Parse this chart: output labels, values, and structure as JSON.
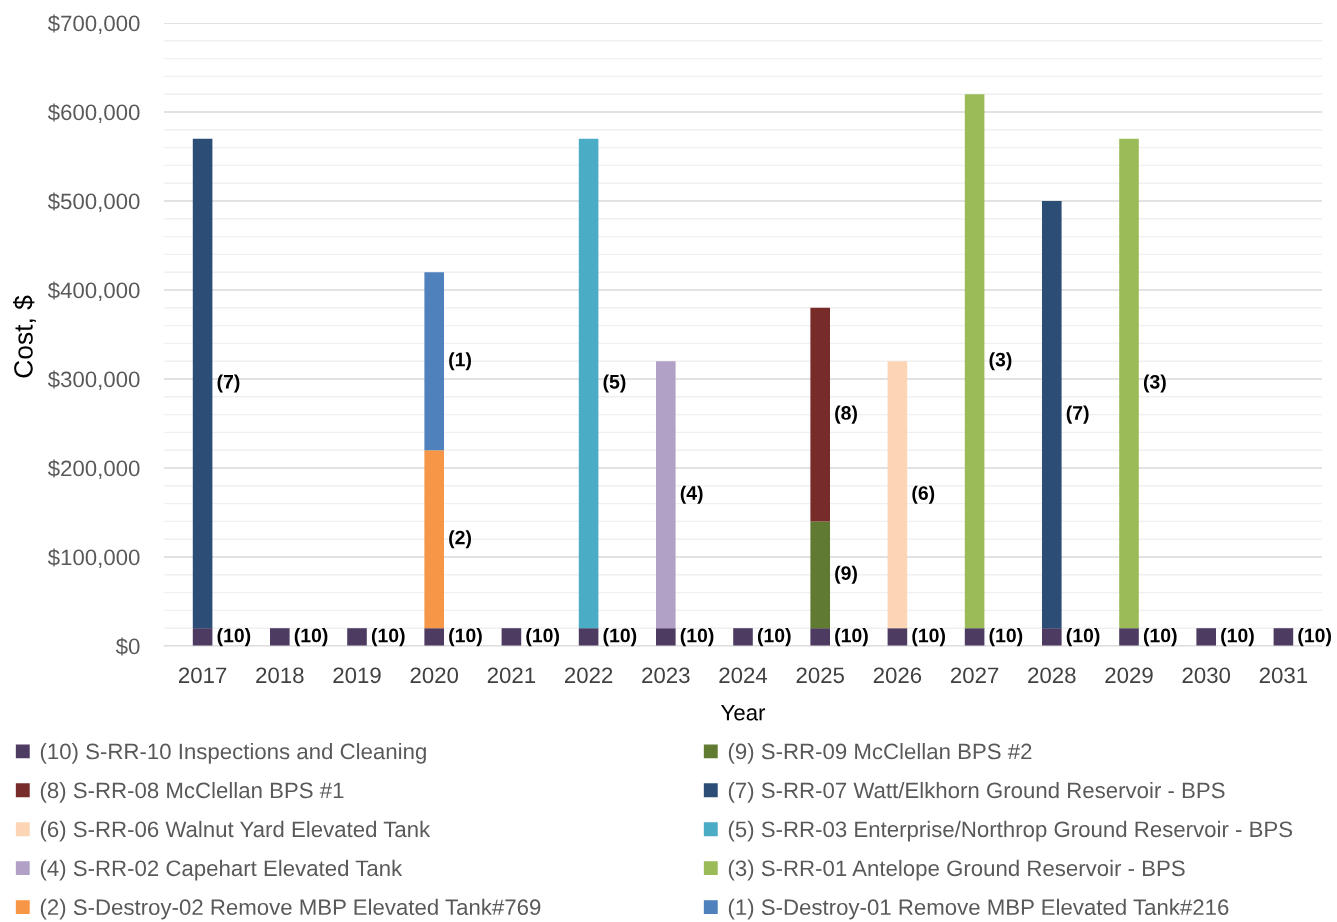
{
  "chart_data": {
    "type": "bar",
    "stacked": true,
    "xlabel": "Year",
    "ylabel": "Cost, $",
    "categories": [
      "2017",
      "2018",
      "2019",
      "2020",
      "2021",
      "2022",
      "2023",
      "2024",
      "2025",
      "2026",
      "2027",
      "2028",
      "2029",
      "2030",
      "2031"
    ],
    "ylim": [
      0,
      700000
    ],
    "yticks": [
      {
        "value": 0,
        "label": "$0"
      },
      {
        "value": 20000,
        "label": null
      },
      {
        "value": 40000,
        "label": null
      },
      {
        "value": 60000,
        "label": null
      },
      {
        "value": 80000,
        "label": null
      },
      {
        "value": 100000,
        "label": "$100,000"
      },
      {
        "value": 120000,
        "label": null
      },
      {
        "value": 140000,
        "label": null
      },
      {
        "value": 160000,
        "label": null
      },
      {
        "value": 180000,
        "label": null
      },
      {
        "value": 200000,
        "label": "$200,000"
      },
      {
        "value": 220000,
        "label": null
      },
      {
        "value": 240000,
        "label": null
      },
      {
        "value": 260000,
        "label": null
      },
      {
        "value": 280000,
        "label": null
      },
      {
        "value": 300000,
        "label": "$300,000"
      },
      {
        "value": 320000,
        "label": null
      },
      {
        "value": 340000,
        "label": null
      },
      {
        "value": 360000,
        "label": null
      },
      {
        "value": 380000,
        "label": null
      },
      {
        "value": 400000,
        "label": "$400,000"
      },
      {
        "value": 420000,
        "label": null
      },
      {
        "value": 440000,
        "label": null
      },
      {
        "value": 460000,
        "label": null
      },
      {
        "value": 480000,
        "label": null
      },
      {
        "value": 500000,
        "label": "$500,000"
      },
      {
        "value": 520000,
        "label": null
      },
      {
        "value": 540000,
        "label": null
      },
      {
        "value": 560000,
        "label": null
      },
      {
        "value": 580000,
        "label": null
      },
      {
        "value": 600000,
        "label": "$600,000"
      },
      {
        "value": 620000,
        "label": null
      },
      {
        "value": 640000,
        "label": null
      },
      {
        "value": 660000,
        "label": null
      },
      {
        "value": 680000,
        "label": null
      },
      {
        "value": 700000,
        "label": "$700,000"
      }
    ],
    "grid": "y",
    "legend": "bottom",
    "series": [
      {
        "name": "(10) S-RR-10 Inspections and Cleaning",
        "color": "#4d3b62",
        "values": [
          20000,
          20000,
          20000,
          20000,
          20000,
          20000,
          20000,
          20000,
          20000,
          20000,
          20000,
          20000,
          20000,
          20000,
          20000
        ]
      },
      {
        "name": "(9) S-RR-09 McClellan BPS #2",
        "color": "#617a32",
        "values": [
          null,
          null,
          null,
          null,
          null,
          null,
          null,
          null,
          120000,
          null,
          null,
          null,
          null,
          null,
          null
        ]
      },
      {
        "name": "(8) S-RR-08 McClellan BPS #1",
        "color": "#772c2a",
        "values": [
          null,
          null,
          null,
          null,
          null,
          null,
          null,
          null,
          240000,
          null,
          null,
          null,
          null,
          null,
          null
        ]
      },
      {
        "name": "(7) S-RR-07 Watt/Elkhorn Ground Reservoir - BPS",
        "color": "#2c4d75",
        "values": [
          550000,
          null,
          null,
          null,
          null,
          null,
          null,
          null,
          null,
          null,
          null,
          480000,
          null,
          null,
          null
        ]
      },
      {
        "name": "(6) S-RR-06 Walnut Yard Elevated Tank",
        "color": "#fcd5b5",
        "values": [
          null,
          null,
          null,
          null,
          null,
          null,
          null,
          null,
          null,
          300000,
          null,
          null,
          null,
          null,
          null
        ]
      },
      {
        "name": "(5) S-RR-03 Enterprise/Northrop Ground Reservoir - BPS",
        "color": "#4bacc6",
        "values": [
          null,
          null,
          null,
          null,
          null,
          550000,
          null,
          null,
          null,
          null,
          null,
          null,
          null,
          null,
          null
        ]
      },
      {
        "name": "(4) S-RR-02 Capehart Elevated Tank",
        "color": "#b2a1c7",
        "values": [
          null,
          null,
          null,
          null,
          null,
          null,
          300000,
          null,
          null,
          null,
          null,
          null,
          null,
          null,
          null
        ]
      },
      {
        "name": "(3) S-RR-01 Antelope Ground Reservoir - BPS",
        "color": "#9bbb59",
        "values": [
          null,
          null,
          null,
          null,
          null,
          null,
          null,
          null,
          null,
          null,
          600000,
          null,
          550000,
          null,
          null
        ]
      },
      {
        "name": "(2) S-Destroy-02 Remove MBP Elevated Tank#769",
        "color": "#f79646",
        "values": [
          null,
          null,
          null,
          200000,
          null,
          null,
          null,
          null,
          null,
          null,
          null,
          null,
          null,
          null,
          null
        ]
      },
      {
        "name": "(1) S-Destroy-01 Remove MBP Elevated Tank#216",
        "color": "#4f81bd",
        "values": [
          null,
          null,
          null,
          200000,
          null,
          null,
          null,
          null,
          null,
          null,
          null,
          null,
          null,
          null,
          null
        ]
      }
    ],
    "annotations": [
      "(7)",
      "(10)",
      "(10)",
      "(10)",
      "(1)",
      "(2)",
      "(10)",
      "(10)",
      "(5)",
      "(10)",
      "(4)",
      "(10)",
      "(10)",
      "(8)",
      "(9)",
      "(10)",
      "(6)",
      "(10)",
      "(3)",
      "(10)",
      "(7)",
      "(10)",
      "(3)",
      "(10)",
      "(10)",
      "(10)"
    ]
  }
}
